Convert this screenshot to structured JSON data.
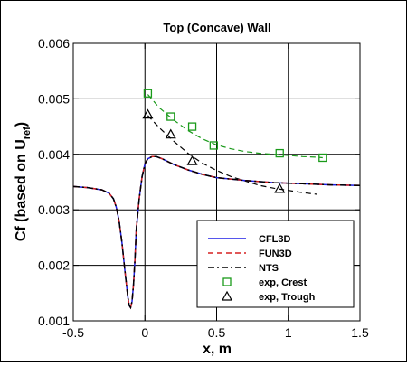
{
  "chart_data": {
    "type": "line",
    "title": "Top (Concave) Wall",
    "xlabel": "x, m",
    "ylabel_main": "Cf (based on U",
    "ylabel_sub": "ref",
    "ylabel_close": ")",
    "xlim": [
      -0.5,
      1.5
    ],
    "ylim": [
      0.001,
      0.006
    ],
    "x_ticks": [
      -0.5,
      0,
      0.5,
      1,
      1.5
    ],
    "x_tick_labels": [
      "-0.5",
      "0",
      "0.5",
      "1",
      "1.5"
    ],
    "y_ticks": [
      0.001,
      0.002,
      0.003,
      0.004,
      0.005,
      0.006
    ],
    "y_tick_labels": [
      "0.001",
      "0.002",
      "0.003",
      "0.004",
      "0.005",
      "0.006"
    ],
    "grid": true,
    "legend_position": "bottom-right",
    "series": [
      {
        "name": "CFL3D",
        "kind": "line",
        "color": "#1f1fe6",
        "dash": "solid",
        "x": [
          -0.5,
          -0.4,
          -0.3,
          -0.25,
          -0.22,
          -0.2,
          -0.18,
          -0.16,
          -0.14,
          -0.12,
          -0.11,
          -0.1,
          -0.09,
          -0.08,
          -0.07,
          -0.06,
          -0.04,
          -0.02,
          0.0,
          0.02,
          0.05,
          0.08,
          0.12,
          0.16,
          0.2,
          0.3,
          0.4,
          0.5,
          0.7,
          0.9,
          1.1,
          1.3,
          1.5
        ],
        "y": [
          0.00342,
          0.0034,
          0.00336,
          0.0033,
          0.0032,
          0.00305,
          0.0028,
          0.0024,
          0.0019,
          0.00145,
          0.00128,
          0.00124,
          0.00135,
          0.00165,
          0.0021,
          0.00265,
          0.0032,
          0.0036,
          0.00383,
          0.00392,
          0.00396,
          0.00396,
          0.00392,
          0.00387,
          0.00382,
          0.00372,
          0.00364,
          0.00358,
          0.00353,
          0.00349,
          0.00347,
          0.00345,
          0.00344
        ]
      },
      {
        "name": "FUN3D",
        "kind": "line",
        "color": "#d62020",
        "dash": "6,4",
        "x": [
          -0.5,
          -0.4,
          -0.3,
          -0.25,
          -0.22,
          -0.2,
          -0.18,
          -0.16,
          -0.14,
          -0.12,
          -0.11,
          -0.1,
          -0.09,
          -0.08,
          -0.07,
          -0.06,
          -0.04,
          -0.02,
          0.0,
          0.02,
          0.05,
          0.08,
          0.12,
          0.16,
          0.2,
          0.3,
          0.4,
          0.5,
          0.7,
          0.9,
          1.1,
          1.3,
          1.5
        ],
        "y": [
          0.00342,
          0.0034,
          0.00336,
          0.0033,
          0.0032,
          0.00305,
          0.0028,
          0.0024,
          0.0019,
          0.00145,
          0.00128,
          0.00124,
          0.00135,
          0.00165,
          0.0021,
          0.00265,
          0.0032,
          0.0036,
          0.00383,
          0.00392,
          0.00396,
          0.00396,
          0.00392,
          0.00387,
          0.00382,
          0.00372,
          0.00364,
          0.00358,
          0.00353,
          0.00349,
          0.00347,
          0.00345,
          0.00344
        ]
      },
      {
        "name": "NTS",
        "kind": "line",
        "color": "#000000",
        "dash": "7,3,2,3",
        "x": [
          -0.5,
          -0.4,
          -0.3,
          -0.25,
          -0.22,
          -0.2,
          -0.18,
          -0.16,
          -0.14,
          -0.12,
          -0.11,
          -0.1,
          -0.09,
          -0.08,
          -0.07,
          -0.06,
          -0.04,
          -0.02,
          0.0,
          0.02,
          0.05,
          0.08,
          0.12,
          0.16,
          0.2,
          0.3,
          0.4,
          0.5,
          0.7,
          0.9,
          1.1,
          1.3,
          1.5
        ],
        "y": [
          0.00342,
          0.0034,
          0.00336,
          0.0033,
          0.0032,
          0.00305,
          0.0028,
          0.0024,
          0.0019,
          0.00145,
          0.00128,
          0.00124,
          0.00135,
          0.00165,
          0.0021,
          0.00265,
          0.0032,
          0.0036,
          0.00383,
          0.00392,
          0.00396,
          0.00396,
          0.00392,
          0.00387,
          0.00382,
          0.00372,
          0.00364,
          0.00358,
          0.00353,
          0.00349,
          0.00347,
          0.00345,
          0.00344
        ]
      },
      {
        "name": "exp, Crest",
        "kind": "marker",
        "marker": "square",
        "color": "#1a9a1a",
        "x": [
          0.02,
          0.18,
          0.33,
          0.48,
          0.94,
          1.24
        ],
        "y": [
          0.0051,
          0.00468,
          0.0045,
          0.00416,
          0.00402,
          0.00394
        ]
      },
      {
        "name": "exp, Trough",
        "kind": "marker",
        "marker": "triangle",
        "color": "#000000",
        "x": [
          0.02,
          0.18,
          0.33,
          0.94
        ],
        "y": [
          0.00472,
          0.00436,
          0.00388,
          0.00338
        ]
      },
      {
        "name": "",
        "kind": "fit",
        "color": "#1a9a1a",
        "dash": "6,4",
        "x": [
          0.02,
          0.1,
          0.2,
          0.3,
          0.4,
          0.5,
          0.6,
          0.7,
          0.8,
          0.9,
          1.0,
          1.1,
          1.2,
          1.24
        ],
        "y": [
          0.00508,
          0.00484,
          0.00462,
          0.00443,
          0.00428,
          0.00417,
          0.0041,
          0.00405,
          0.00402,
          0.004,
          0.00398,
          0.00396,
          0.00395,
          0.00394
        ]
      },
      {
        "name": "",
        "kind": "fit",
        "color": "#000000",
        "dash": "6,4",
        "x": [
          0.02,
          0.1,
          0.2,
          0.3,
          0.4,
          0.5,
          0.6,
          0.7,
          0.8,
          0.9,
          1.0,
          1.1,
          1.2
        ],
        "y": [
          0.0047,
          0.00448,
          0.00424,
          0.00402,
          0.00384,
          0.00371,
          0.0036,
          0.00352,
          0.00344,
          0.00339,
          0.00335,
          0.00331,
          0.00328
        ]
      }
    ]
  }
}
